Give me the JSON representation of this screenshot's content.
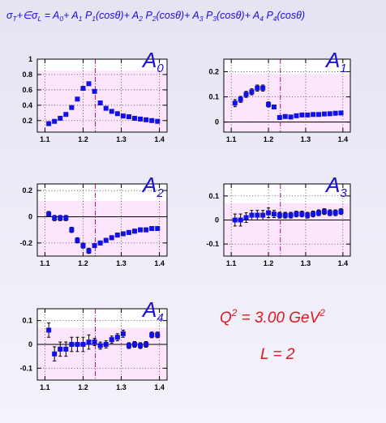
{
  "header": {
    "formula": [
      {
        "t": "σ"
      },
      {
        "t": "T",
        "s": "sub"
      },
      {
        "t": "+∈σ"
      },
      {
        "t": "L",
        "s": "sub"
      },
      {
        "t": " = A"
      },
      {
        "t": "0",
        "s": "sub"
      },
      {
        "t": "+ A"
      },
      {
        "t": "1",
        "s": "sub"
      },
      {
        "t": " P"
      },
      {
        "t": "1",
        "s": "sub"
      },
      {
        "t": "(cosθ)+ A"
      },
      {
        "t": "2",
        "s": "sub"
      },
      {
        "t": " P"
      },
      {
        "t": "2",
        "s": "sub"
      },
      {
        "t": "(cosθ)+ A"
      },
      {
        "t": "3",
        "s": "sub"
      },
      {
        "t": " P"
      },
      {
        "t": "3",
        "s": "sub"
      },
      {
        "t": "(cosθ)+ A"
      },
      {
        "t": "4",
        "s": "sub"
      },
      {
        "t": " P"
      },
      {
        "t": "4",
        "s": "sub"
      },
      {
        "t": "(cosθ)"
      }
    ]
  },
  "annotation": {
    "q2": [
      {
        "t": "Q"
      },
      {
        "t": "2",
        "s": "sup"
      },
      {
        "t": " = 3.00 GeV"
      },
      {
        "t": "2",
        "s": "sup"
      }
    ],
    "l": "L = 2"
  },
  "colors": {
    "marker": "#1010e8",
    "plot_background": "#fde6fc",
    "dashed_line": "#c0139a",
    "label": "#1c0fd6",
    "annotation": "#e0151b",
    "title": "#1a0dd6"
  },
  "chart_data": [
    {
      "type": "scatter",
      "label": "A",
      "label_sub": "0",
      "xlim": [
        1.08,
        1.42
      ],
      "ylim": [
        0.05,
        1.0
      ],
      "xticks": [
        1.1,
        1.2,
        1.3,
        1.4
      ],
      "xtick_labels": [
        "1.1",
        "1.2",
        "1.3",
        "1.4"
      ],
      "yticks": [
        0.2,
        0.4,
        0.6,
        0.8,
        1.0
      ],
      "ytick_labels": [
        "0.2",
        "0.4",
        "0.6",
        "0.8",
        "1"
      ],
      "zero_line": false,
      "dashed_x": 1.232,
      "shade_top": 0.85,
      "series": [
        {
          "x": [
            1.11,
            1.125,
            1.14,
            1.155,
            1.17,
            1.185,
            1.2,
            1.215,
            1.23,
            1.245,
            1.26,
            1.275,
            1.29,
            1.305,
            1.32,
            1.335,
            1.35,
            1.365,
            1.38,
            1.395
          ],
          "y": [
            0.16,
            0.19,
            0.23,
            0.28,
            0.37,
            0.48,
            0.62,
            0.68,
            0.58,
            0.43,
            0.36,
            0.32,
            0.29,
            0.26,
            0.25,
            0.23,
            0.22,
            0.21,
            0.2,
            0.19
          ],
          "err": [
            0,
            0,
            0,
            0,
            0,
            0,
            0,
            0,
            0,
            0,
            0,
            0,
            0,
            0,
            0,
            0,
            0,
            0,
            0,
            0
          ]
        }
      ]
    },
    {
      "type": "scatter",
      "label": "A",
      "label_sub": "1",
      "xlim": [
        1.08,
        1.42
      ],
      "ylim": [
        -0.04,
        0.25
      ],
      "xticks": [
        1.1,
        1.2,
        1.3,
        1.4
      ],
      "xtick_labels": [
        "1.1",
        "1.2",
        "1.3",
        "1.4"
      ],
      "yticks": [
        0,
        0.1,
        0.2
      ],
      "ytick_labels": [
        "0",
        "0.1",
        "0.2"
      ],
      "zero_line": true,
      "dashed_x": 1.232,
      "shade_top": 0.19,
      "series": [
        {
          "x": [
            1.11,
            1.125,
            1.14,
            1.155,
            1.17,
            1.185,
            1.2,
            1.215,
            1.23,
            1.245,
            1.26,
            1.275,
            1.29,
            1.305,
            1.32,
            1.335,
            1.35,
            1.365,
            1.38,
            1.395
          ],
          "y": [
            0.075,
            0.09,
            0.11,
            0.12,
            0.135,
            0.135,
            0.07,
            0.06,
            0.018,
            0.022,
            0.02,
            0.025,
            0.028,
            0.028,
            0.03,
            0.03,
            0.032,
            0.033,
            0.035,
            0.036
          ],
          "err": [
            0.014,
            0.012,
            0.012,
            0.012,
            0.012,
            0.012,
            0.01,
            0.008,
            0.006,
            0.006,
            0.006,
            0.006,
            0.006,
            0.006,
            0.006,
            0.006,
            0.006,
            0.006,
            0.006,
            0.006
          ]
        }
      ]
    },
    {
      "type": "scatter",
      "label": "A",
      "label_sub": "2",
      "xlim": [
        1.08,
        1.42
      ],
      "ylim": [
        -0.3,
        0.25
      ],
      "xticks": [
        1.1,
        1.2,
        1.3,
        1.4
      ],
      "xtick_labels": [
        "1.1",
        "1.2",
        "1.3",
        "1.4"
      ],
      "yticks": [
        -0.2,
        0,
        0.2
      ],
      "ytick_labels": [
        "-0.2",
        "0",
        "0.2"
      ],
      "zero_line": true,
      "dashed_x": 1.232,
      "shade_top": 0.12,
      "series": [
        {
          "x": [
            1.11,
            1.125,
            1.14,
            1.155,
            1.17,
            1.185,
            1.2,
            1.215,
            1.23,
            1.245,
            1.26,
            1.275,
            1.29,
            1.305,
            1.32,
            1.335,
            1.35,
            1.365,
            1.38,
            1.395
          ],
          "y": [
            0.02,
            -0.01,
            -0.01,
            -0.01,
            -0.1,
            -0.18,
            -0.22,
            -0.26,
            -0.22,
            -0.2,
            -0.18,
            -0.16,
            -0.14,
            -0.13,
            -0.12,
            -0.11,
            -0.1,
            -0.1,
            -0.09,
            -0.09
          ],
          "err": [
            0.02,
            0.02,
            0.02,
            0.02,
            0.02,
            0.02,
            0.02,
            0.02,
            0.015,
            0.015,
            0.015,
            0.015,
            0.015,
            0.015,
            0.015,
            0.015,
            0.015,
            0.015,
            0.015,
            0.015
          ]
        }
      ]
    },
    {
      "type": "scatter",
      "label": "A",
      "label_sub": "3",
      "xlim": [
        1.08,
        1.42
      ],
      "ylim": [
        -0.15,
        0.15
      ],
      "xticks": [
        1.1,
        1.2,
        1.3,
        1.4
      ],
      "xtick_labels": [
        "1.1",
        "1.2",
        "1.3",
        "1.4"
      ],
      "yticks": [
        -0.1,
        0,
        0.1
      ],
      "ytick_labels": [
        "-0.1",
        "0",
        "0.1"
      ],
      "zero_line": true,
      "dashed_x": 1.232,
      "shade_top": 0.07,
      "series": [
        {
          "x": [
            1.11,
            1.125,
            1.14,
            1.155,
            1.17,
            1.185,
            1.2,
            1.215,
            1.23,
            1.245,
            1.26,
            1.275,
            1.29,
            1.305,
            1.32,
            1.335,
            1.35,
            1.365,
            1.38,
            1.395
          ],
          "y": [
            0.0,
            0.0,
            0.01,
            0.02,
            0.02,
            0.02,
            0.03,
            0.025,
            0.02,
            0.02,
            0.02,
            0.025,
            0.025,
            0.02,
            0.025,
            0.03,
            0.035,
            0.03,
            0.03,
            0.035
          ],
          "err": [
            0.025,
            0.025,
            0.02,
            0.02,
            0.02,
            0.02,
            0.02,
            0.015,
            0.012,
            0.012,
            0.012,
            0.012,
            0.012,
            0.012,
            0.012,
            0.012,
            0.012,
            0.012,
            0.012,
            0.012
          ]
        }
      ]
    },
    {
      "type": "scatter",
      "label": "A",
      "label_sub": "4",
      "xlim": [
        1.08,
        1.42
      ],
      "ylim": [
        -0.15,
        0.15
      ],
      "xticks": [
        1.1,
        1.2,
        1.3,
        1.4
      ],
      "xtick_labels": [
        "1.1",
        "1.2",
        "1.3",
        "1.4"
      ],
      "yticks": [
        -0.1,
        0,
        0.1
      ],
      "ytick_labels": [
        "-0.1",
        "0",
        "0.1"
      ],
      "zero_line": true,
      "dashed_x": 1.232,
      "shade_top": 0.07,
      "series": [
        {
          "x": [
            1.11,
            1.125,
            1.14,
            1.155,
            1.17,
            1.185,
            1.2,
            1.215,
            1.23,
            1.245,
            1.26,
            1.275,
            1.29,
            1.305,
            1.32,
            1.335,
            1.35,
            1.365,
            1.38,
            1.395
          ],
          "y": [
            0.06,
            -0.04,
            -0.02,
            -0.02,
            0.0,
            0.0,
            0.0,
            0.01,
            0.01,
            -0.005,
            0.0,
            0.02,
            0.03,
            0.045,
            -0.005,
            0.0,
            -0.005,
            0.0,
            0.04,
            0.04
          ],
          "err": [
            0.03,
            0.03,
            0.03,
            0.03,
            0.03,
            0.03,
            0.03,
            0.03,
            0.015,
            0.015,
            0.015,
            0.015,
            0.015,
            0.015,
            0.012,
            0.012,
            0.012,
            0.012,
            0.012,
            0.012
          ]
        }
      ]
    }
  ]
}
